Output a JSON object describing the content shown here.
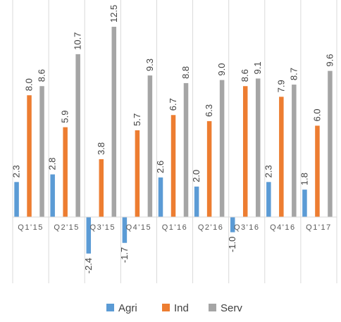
{
  "chart_data": {
    "type": "bar",
    "categories": [
      "Q1'15",
      "Q2'15",
      "Q3'15",
      "Q4'15",
      "Q1'16",
      "Q2'16",
      "Q3'16",
      "Q4'16",
      "Q1'17"
    ],
    "series": [
      {
        "name": "Agri",
        "color": "#5B9BD5",
        "values": [
          2.3,
          2.8,
          -2.4,
          -1.7,
          2.6,
          2.0,
          -1.0,
          2.3,
          1.8
        ],
        "labels": [
          "2.3",
          "2.8",
          "-2.4",
          "-1.7",
          "2.6",
          "2.0",
          "-1.0",
          "2.3",
          "1.8"
        ]
      },
      {
        "name": "Ind",
        "color": "#ED7D31",
        "values": [
          8.0,
          5.9,
          3.8,
          5.7,
          6.7,
          6.3,
          8.6,
          7.9,
          6.0
        ],
        "labels": [
          "8.0",
          "5.9",
          "3.8",
          "5.7",
          "6.7",
          "6.3",
          "8.6",
          "7.9",
          "6.0"
        ]
      },
      {
        "name": "Serv",
        "color": "#A5A5A5",
        "values": [
          8.6,
          10.7,
          12.5,
          9.3,
          8.8,
          9.0,
          9.1,
          8.7,
          9.6
        ],
        "labels": [
          "8.6",
          "10.7",
          "12.5",
          "9.3",
          "8.8",
          "9.0",
          "9.1",
          "8.7",
          "9.6"
        ]
      }
    ],
    "legend_position": "bottom",
    "gridlines": "vertical category separators",
    "data_labels": "rotated vertical above bars"
  }
}
